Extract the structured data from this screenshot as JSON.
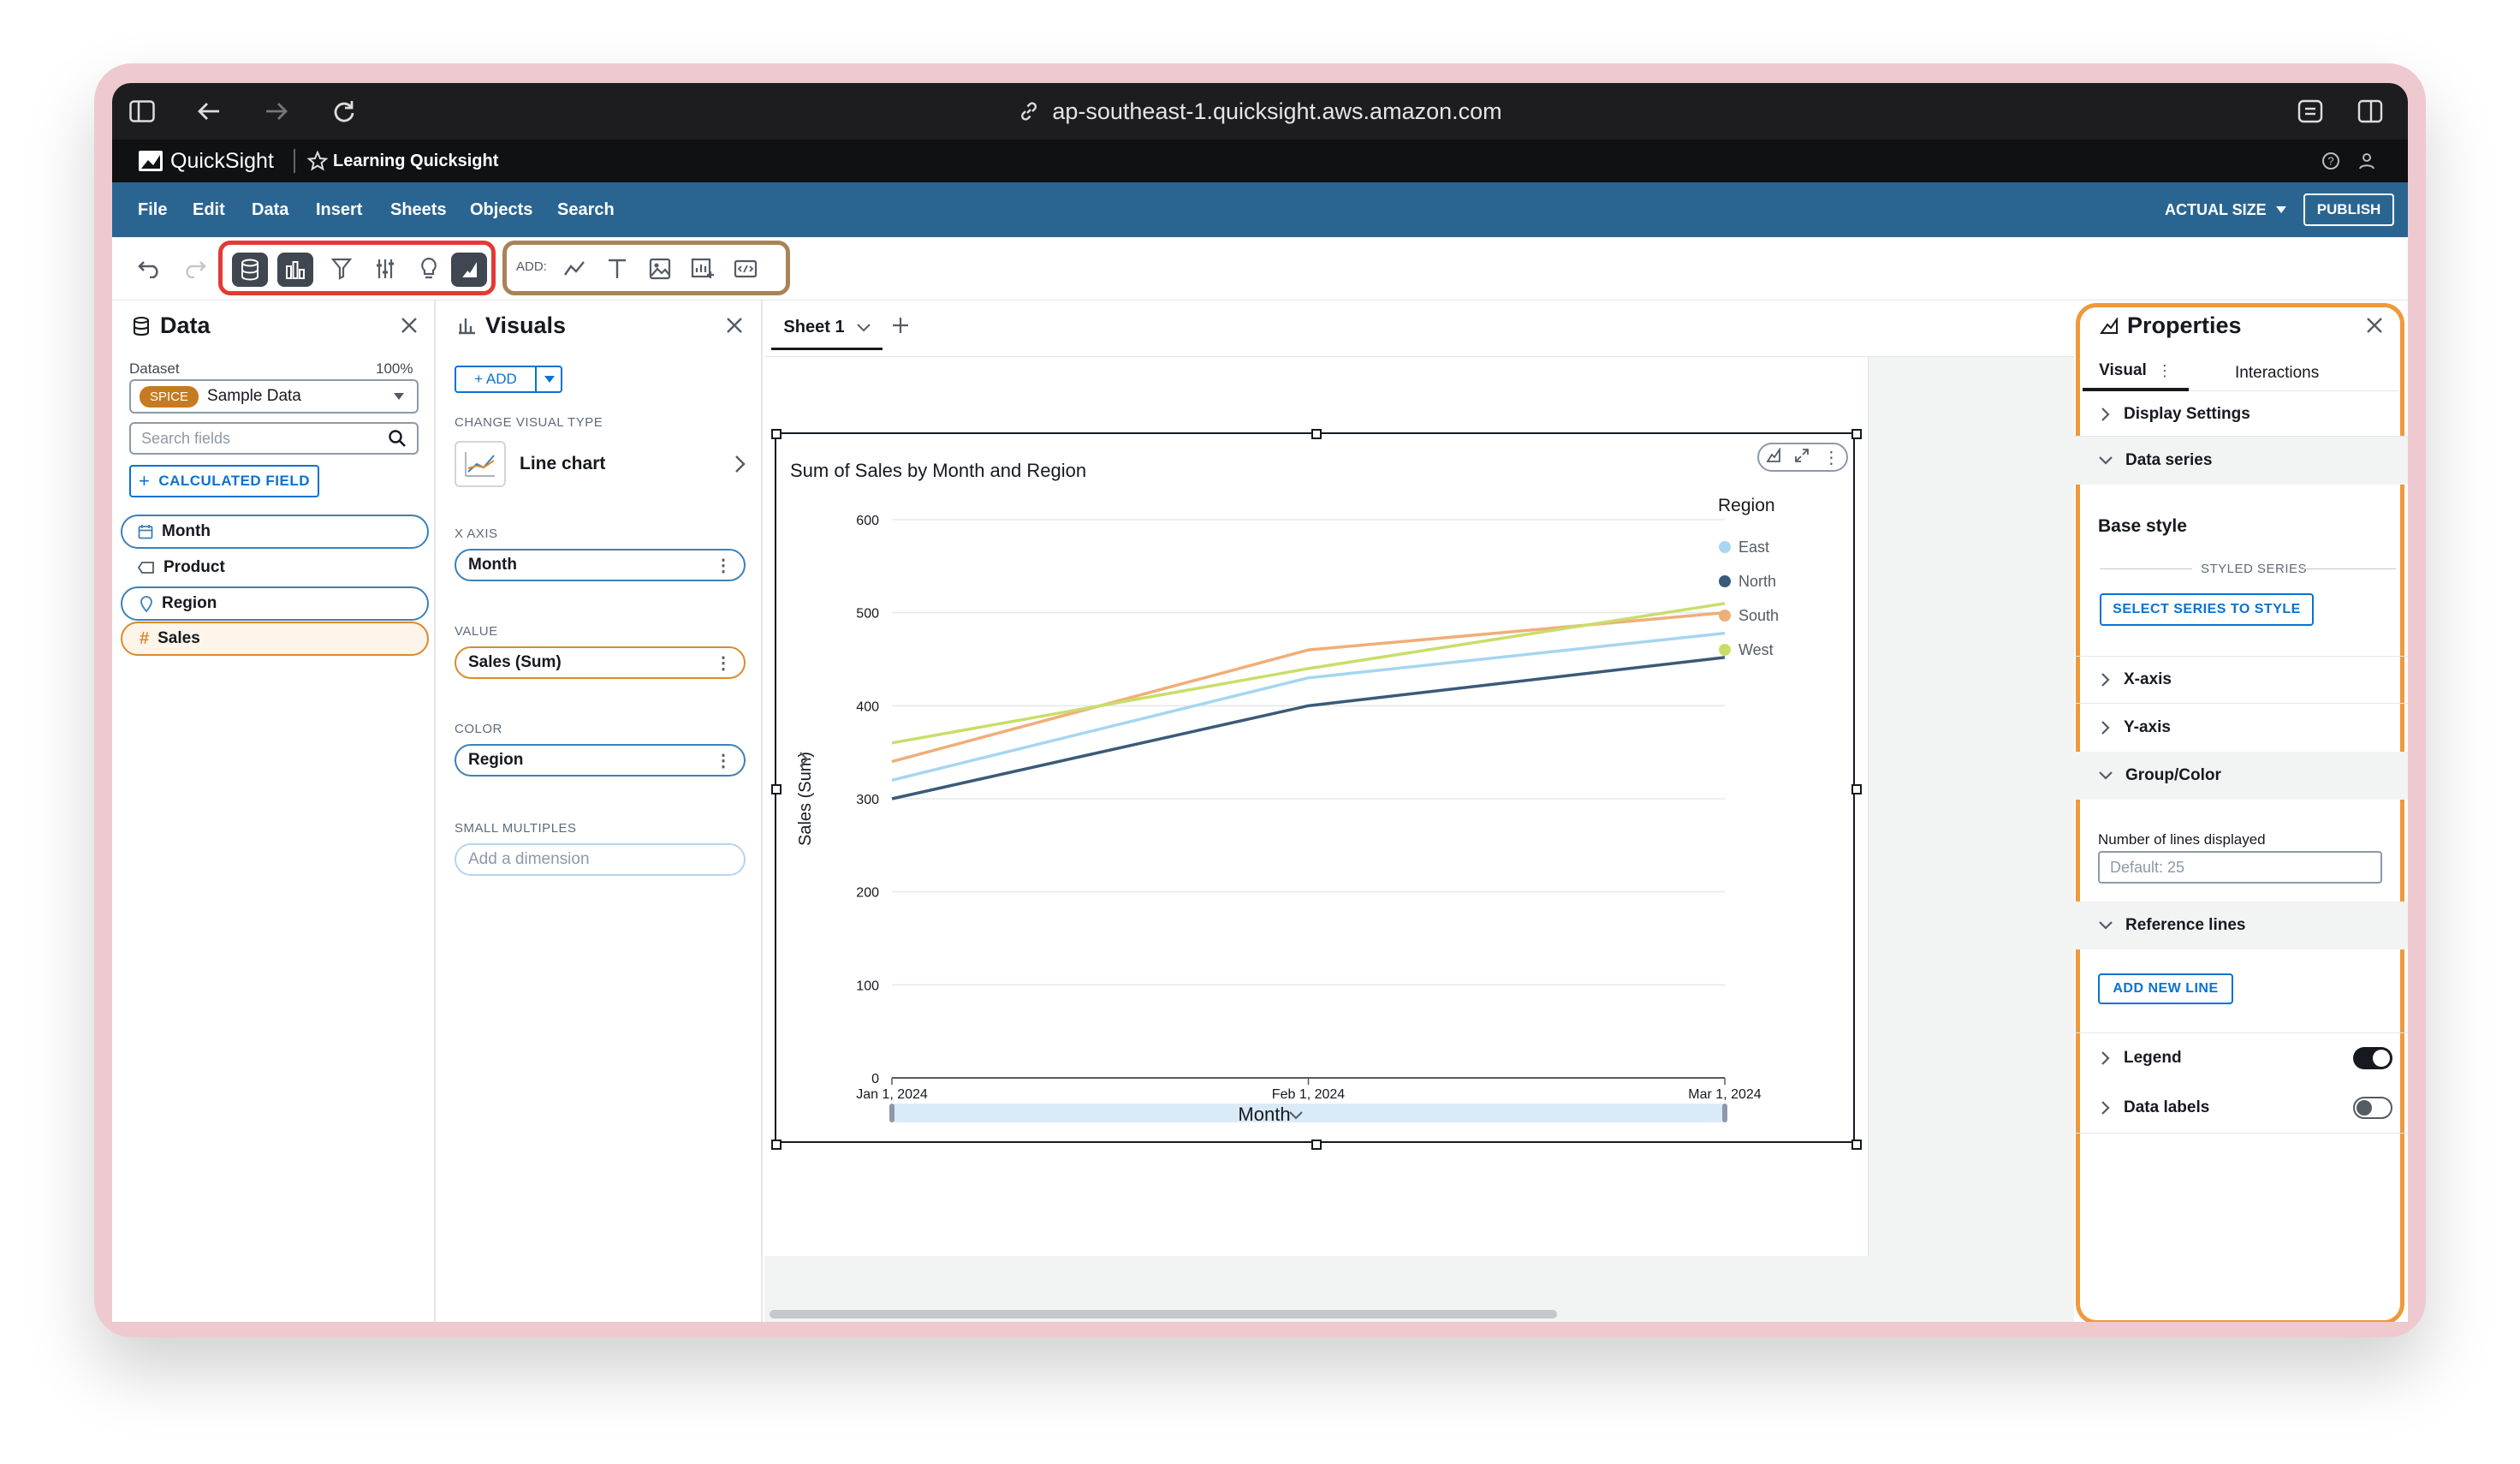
{
  "browser": {
    "url": "ap-southeast-1.quicksight.aws.amazon.com"
  },
  "app": {
    "name": "QuickSight",
    "analysis": "Learning Quicksight"
  },
  "menu": {
    "items": [
      "File",
      "Edit",
      "Data",
      "Insert",
      "Sheets",
      "Objects",
      "Search"
    ],
    "actual_size": "ACTUAL SIZE",
    "publish": "PUBLISH"
  },
  "toolbar": {
    "add_label": "ADD:"
  },
  "data_pane": {
    "title": "Data",
    "dataset_label": "Dataset",
    "dataset_percent": "100%",
    "spice_badge": "SPICE",
    "dataset_name": "Sample Data",
    "search_placeholder": "Search fields",
    "calc_field": "CALCULATED FIELD",
    "fields": [
      "Month",
      "Product",
      "Region",
      "Sales"
    ]
  },
  "visuals_pane": {
    "title": "Visuals",
    "add": "+ ADD",
    "change_type_label": "CHANGE VISUAL TYPE",
    "visual_type": "Line chart",
    "x_axis_label": "X AXIS",
    "x_axis_field": "Month",
    "value_label": "VALUE",
    "value_field": "Sales (Sum)",
    "color_label": "COLOR",
    "color_field": "Region",
    "small_multiples_label": "SMALL MULTIPLES",
    "small_multiples_placeholder": "Add a dimension"
  },
  "sheet": {
    "tab": "Sheet 1"
  },
  "chart_data": {
    "type": "line",
    "title": "Sum of Sales by Month and Region",
    "xlabel": "Month",
    "ylabel": "Sales (Sum)",
    "x": [
      "Jan 1, 2024",
      "Feb 1, 2024",
      "Mar 1, 2024"
    ],
    "ylim": [
      0,
      600
    ],
    "yticks": [
      "0",
      "100",
      "200",
      "300",
      "400",
      "500",
      "600"
    ],
    "legend_title": "Region",
    "legend_position": "right",
    "series": [
      {
        "name": "East",
        "color": "#a6d6f0",
        "values": [
          320,
          430,
          478
        ]
      },
      {
        "name": "North",
        "color": "#3b5a78",
        "values": [
          300,
          400,
          452
        ]
      },
      {
        "name": "South",
        "color": "#f0ae78",
        "values": [
          340,
          460,
          500
        ]
      },
      {
        "name": "West",
        "color": "#c8de6a",
        "values": [
          360,
          440,
          510
        ]
      }
    ]
  },
  "properties": {
    "title": "Properties",
    "tabs": [
      "Visual",
      "Interactions"
    ],
    "display_settings": "Display Settings",
    "data_series": "Data series",
    "base_style": "Base style",
    "styled_series": "STYLED SERIES",
    "select_series": "SELECT SERIES TO STYLE",
    "x_axis": "X-axis",
    "y_axis": "Y-axis",
    "group_color": "Group/Color",
    "lines_label": "Number of lines displayed",
    "lines_placeholder": "Default: 25",
    "reference_lines": "Reference lines",
    "add_new_line": "ADD NEW LINE",
    "legend": "Legend",
    "legend_on": true,
    "data_labels": "Data labels",
    "data_labels_on": false
  }
}
